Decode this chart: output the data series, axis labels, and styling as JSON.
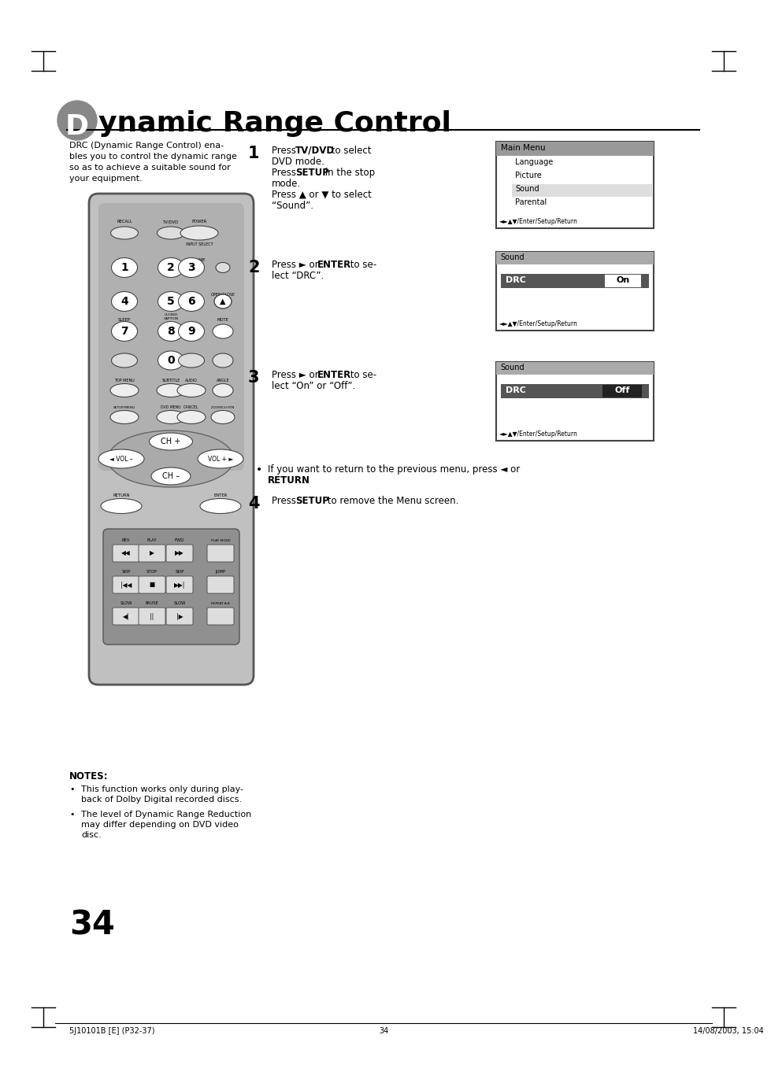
{
  "title_d": "D",
  "title_rest": "ynamic Range Control",
  "page_num": "34",
  "footer_left": "5J10101B [E] (P32-37)",
  "footer_center": "34",
  "footer_right": "14/08/2003, 15:04",
  "bg_color": "#ffffff",
  "remote_body_color": "#c0c0c0",
  "remote_dark_color": "#a0a0a0",
  "remote_btn_color": "#e8e8e8",
  "remote_edge_color": "#444444"
}
